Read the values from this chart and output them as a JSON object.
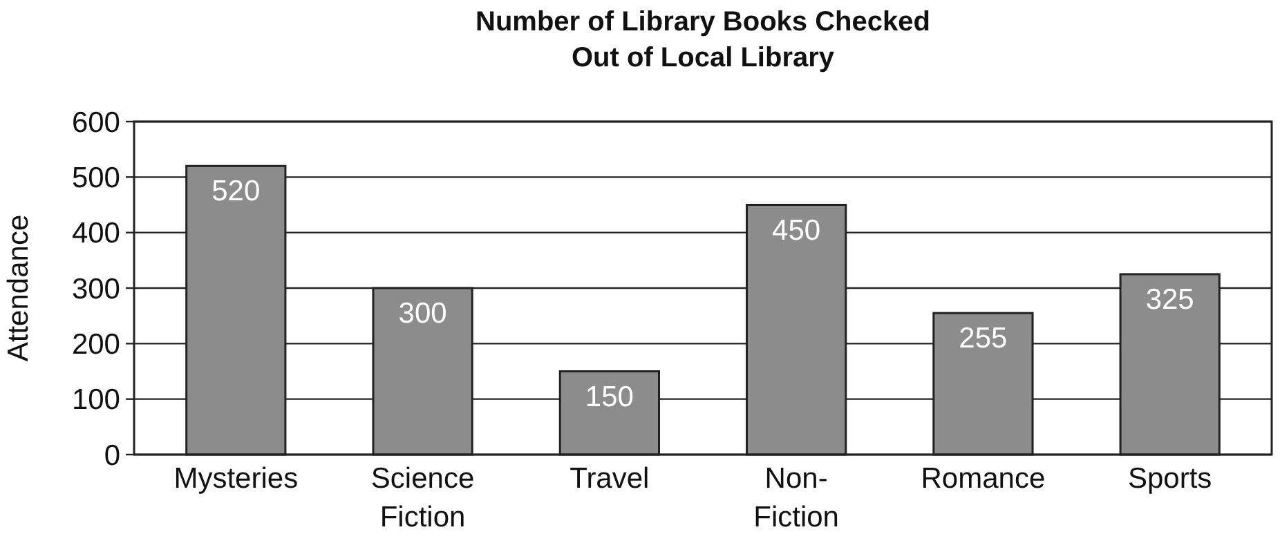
{
  "chart_data": {
    "type": "bar",
    "title": "Number of Library Books Checked Out of Local Library",
    "ylabel": "Attendance",
    "categories": [
      "Mysteries",
      "Science Fiction",
      "Travel",
      "Non-Fiction",
      "Romance",
      "Sports"
    ],
    "values": [
      520,
      300,
      150,
      450,
      255,
      325
    ],
    "color": "#8c8c8c",
    "ylim": [
      0,
      600
    ],
    "yticks": [
      0,
      100,
      200,
      300,
      400,
      500,
      600
    ],
    "grid": "y",
    "data_labels": true
  }
}
